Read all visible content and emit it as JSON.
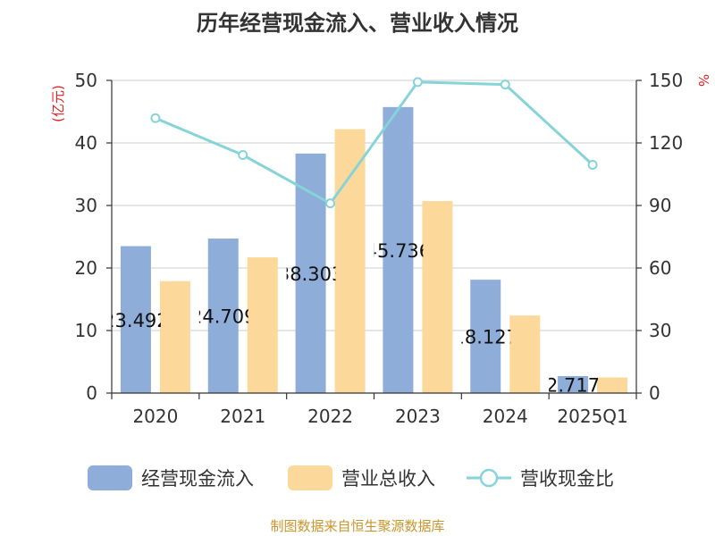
{
  "chart_data": {
    "type": "bar",
    "title": "历年经营现金流入、营业收入情况",
    "categories": [
      "2020",
      "2021",
      "2022",
      "2023",
      "2024",
      "2025Q1"
    ],
    "y_left": {
      "label": "(亿元)",
      "range": [
        0,
        50
      ],
      "ticks": [
        0,
        10,
        20,
        30,
        40,
        50
      ]
    },
    "y_right": {
      "label": "%",
      "range": [
        0,
        150
      ],
      "ticks": [
        0,
        30,
        60,
        90,
        120,
        150
      ]
    },
    "series": [
      {
        "name": "经营现金流入",
        "kind": "bar",
        "axis": "left",
        "color": "#8eadd9",
        "values": [
          23.492,
          24.709,
          38.303,
          45.736,
          18.127,
          2.717
        ],
        "labels": [
          "23.492",
          "24.709",
          "38.303",
          "45.736",
          "18.127",
          "2.717"
        ]
      },
      {
        "name": "营业总收入",
        "kind": "bar",
        "axis": "left",
        "color": "#fdd89b",
        "values": [
          17.9,
          21.7,
          42.2,
          30.7,
          12.4,
          2.5
        ]
      },
      {
        "name": "营收现金比",
        "kind": "line",
        "axis": "right",
        "color": "#86d4d8",
        "values": [
          131.9,
          114.2,
          91.0,
          149.2,
          148.0,
          109.5
        ]
      }
    ],
    "grid": true,
    "legend_position": "bottom"
  },
  "footer": {
    "source_text": "制图数据来自恒生聚源数据库"
  },
  "colors": {
    "axis": "#333333",
    "grid": "#cccccc",
    "left_axis_label": "#e02020",
    "title": "#333333"
  }
}
